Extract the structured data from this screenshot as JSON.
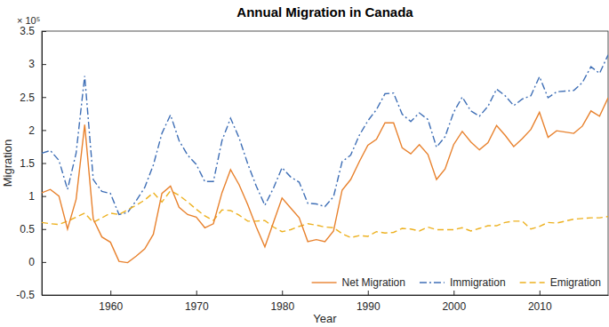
{
  "chart_data": {
    "type": "line",
    "title": "Annual Migration in Canada",
    "x_label": "Year",
    "y_label": "Migration",
    "annotations": [
      "× 10⁵"
    ],
    "x": [
      1952,
      1953,
      1954,
      1955,
      1956,
      1957,
      1958,
      1959,
      1960,
      1961,
      1962,
      1963,
      1964,
      1965,
      1966,
      1967,
      1968,
      1969,
      1970,
      1971,
      1972,
      1973,
      1974,
      1975,
      1976,
      1977,
      1978,
      1979,
      1980,
      1981,
      1982,
      1983,
      1984,
      1985,
      1986,
      1987,
      1988,
      1989,
      1990,
      1991,
      1992,
      1993,
      1994,
      1995,
      1996,
      1997,
      1998,
      1999,
      2000,
      2001,
      2002,
      2003,
      2004,
      2005,
      2006,
      2007,
      2008,
      2009,
      2010,
      2011,
      2012,
      2013,
      2014,
      2015,
      2016,
      2017,
      2018
    ],
    "series": [
      {
        "name": "Net Migration",
        "color": "#e8822e",
        "line_style": "solid",
        "values": [
          1.05,
          1.1,
          1.0,
          0.5,
          0.95,
          2.08,
          0.65,
          0.38,
          0.3,
          0.01,
          -0.01,
          0.09,
          0.2,
          0.42,
          1.04,
          1.15,
          0.83,
          0.72,
          0.68,
          0.52,
          0.58,
          1.05,
          1.4,
          1.17,
          0.87,
          0.53,
          0.23,
          0.6,
          0.97,
          0.82,
          0.67,
          0.31,
          0.34,
          0.31,
          0.47,
          1.09,
          1.25,
          1.52,
          1.77,
          1.86,
          2.11,
          2.11,
          1.73,
          1.64,
          1.78,
          1.63,
          1.25,
          1.41,
          1.78,
          1.98,
          1.82,
          1.7,
          1.81,
          2.07,
          1.92,
          1.75,
          1.87,
          2.01,
          2.27,
          1.89,
          1.99,
          1.97,
          1.95,
          2.06,
          2.29,
          2.21,
          2.49
        ]
      },
      {
        "name": "Immigration",
        "color": "#3f6fb6",
        "line_style": "dashdot",
        "values": [
          1.65,
          1.69,
          1.54,
          1.1,
          1.65,
          2.82,
          1.25,
          1.07,
          1.04,
          0.72,
          0.75,
          0.93,
          1.13,
          1.47,
          1.95,
          2.23,
          1.84,
          1.62,
          1.48,
          1.22,
          1.22,
          1.84,
          2.18,
          1.88,
          1.49,
          1.15,
          0.86,
          1.12,
          1.43,
          1.29,
          1.21,
          0.89,
          0.88,
          0.84,
          0.99,
          1.52,
          1.62,
          1.92,
          2.14,
          2.31,
          2.55,
          2.56,
          2.24,
          2.13,
          2.26,
          2.16,
          1.74,
          1.9,
          2.27,
          2.5,
          2.29,
          2.21,
          2.36,
          2.62,
          2.52,
          2.37,
          2.47,
          2.52,
          2.81,
          2.49,
          2.58,
          2.59,
          2.6,
          2.72,
          2.96,
          2.86,
          3.14
        ]
      },
      {
        "name": "Emigration",
        "color": "#edb120",
        "line_style": "dashed",
        "values": [
          0.6,
          0.58,
          0.57,
          0.62,
          0.68,
          0.74,
          0.6,
          0.67,
          0.74,
          0.72,
          0.79,
          0.86,
          0.94,
          1.05,
          0.91,
          1.08,
          1.01,
          0.91,
          0.8,
          0.7,
          0.63,
          0.79,
          0.78,
          0.71,
          0.62,
          0.62,
          0.63,
          0.53,
          0.46,
          0.49,
          0.54,
          0.58,
          0.56,
          0.53,
          0.52,
          0.43,
          0.37,
          0.4,
          0.39,
          0.46,
          0.44,
          0.45,
          0.51,
          0.5,
          0.47,
          0.53,
          0.49,
          0.49,
          0.49,
          0.52,
          0.47,
          0.51,
          0.55,
          0.55,
          0.6,
          0.62,
          0.62,
          0.5,
          0.54,
          0.6,
          0.59,
          0.62,
          0.65,
          0.66,
          0.67,
          0.67,
          0.69
        ]
      }
    ],
    "xlim": [
      1952,
      2018
    ],
    "xticks": [
      1960,
      1970,
      1980,
      1990,
      2000,
      2010
    ],
    "ylim": [
      -0.5,
      3.5
    ],
    "yticks": [
      -0.5,
      0,
      0.5,
      1,
      1.5,
      2,
      2.5,
      3,
      3.5
    ],
    "grid": false,
    "legend": "lower right"
  }
}
